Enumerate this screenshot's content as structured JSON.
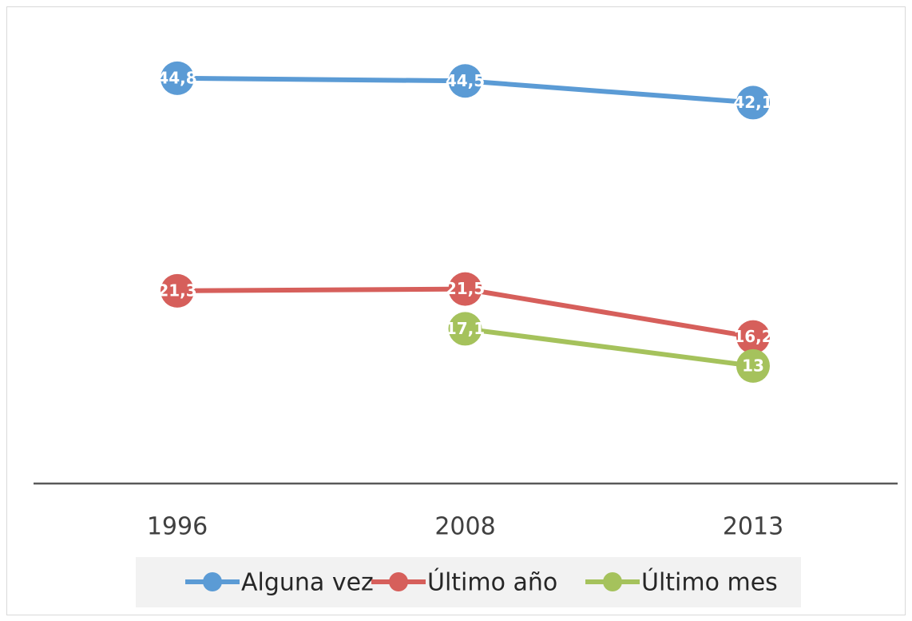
{
  "chart_data": {
    "type": "line",
    "categories": [
      "1996",
      "2008",
      "2013"
    ],
    "series": [
      {
        "name": "Alguna vez",
        "color": "#5b9bd5",
        "values": [
          44.8,
          44.5,
          42.1
        ],
        "value_labels": [
          "44,8",
          "44,5",
          "42,1"
        ]
      },
      {
        "name": "Último año",
        "color": "#d65f5b",
        "values": [
          21.3,
          21.5,
          16.2
        ],
        "value_labels": [
          "21,3",
          "21,5",
          "16,2"
        ]
      },
      {
        "name": "Último mes",
        "color": "#a5c25c",
        "values": [
          null,
          17.1,
          13
        ],
        "value_labels": [
          null,
          "17,1",
          "13"
        ]
      }
    ],
    "ylim": [
      0,
      50
    ],
    "legend": "bottom"
  }
}
